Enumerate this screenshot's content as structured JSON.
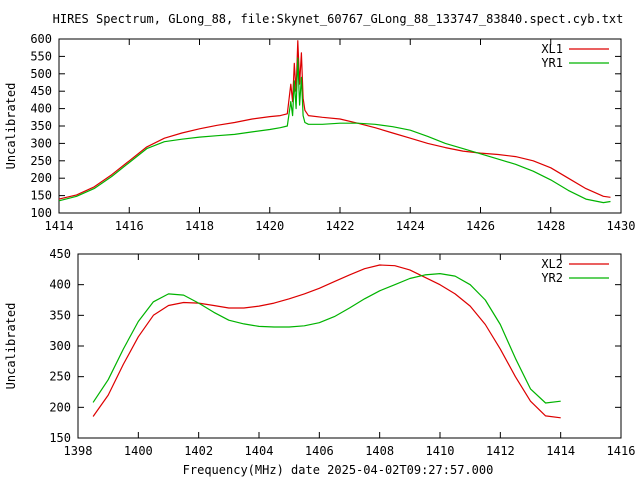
{
  "title": "HIRES Spectrum, GLong_88, file:Skynet_60767_GLong_88_133747_83840.spect.cyb.txt",
  "colors": {
    "red": "#dd0000",
    "green": "#00b300",
    "axis": "#000000"
  },
  "chart_data": [
    {
      "type": "line",
      "ylabel": "Uncalibrated",
      "xlabel": "",
      "xlim": [
        1414,
        1430
      ],
      "ylim": [
        100,
        600
      ],
      "xticks": [
        1414,
        1416,
        1418,
        1420,
        1422,
        1424,
        1426,
        1428,
        1430
      ],
      "yticks": [
        100,
        150,
        200,
        250,
        300,
        350,
        400,
        450,
        500,
        550,
        600
      ],
      "legend_position": "top-right",
      "series": [
        {
          "name": "XL1",
          "color": "#dd0000",
          "points": [
            [
              1414.0,
              140
            ],
            [
              1414.5,
              152
            ],
            [
              1415.0,
              175
            ],
            [
              1415.5,
              210
            ],
            [
              1416.0,
              250
            ],
            [
              1416.5,
              290
            ],
            [
              1417.0,
              315
            ],
            [
              1417.5,
              330
            ],
            [
              1418.0,
              342
            ],
            [
              1418.5,
              352
            ],
            [
              1419.0,
              360
            ],
            [
              1419.5,
              370
            ],
            [
              1420.0,
              377
            ],
            [
              1420.3,
              380
            ],
            [
              1420.5,
              385
            ],
            [
              1420.6,
              470
            ],
            [
              1420.65,
              420
            ],
            [
              1420.7,
              530
            ],
            [
              1420.75,
              450
            ],
            [
              1420.8,
              595
            ],
            [
              1420.85,
              470
            ],
            [
              1420.9,
              560
            ],
            [
              1420.95,
              430
            ],
            [
              1421.0,
              395
            ],
            [
              1421.1,
              380
            ],
            [
              1421.5,
              375
            ],
            [
              1422.0,
              370
            ],
            [
              1422.5,
              358
            ],
            [
              1423.0,
              345
            ],
            [
              1423.5,
              330
            ],
            [
              1424.0,
              315
            ],
            [
              1424.5,
              300
            ],
            [
              1425.0,
              288
            ],
            [
              1425.5,
              278
            ],
            [
              1426.0,
              272
            ],
            [
              1426.5,
              268
            ],
            [
              1427.0,
              262
            ],
            [
              1427.5,
              250
            ],
            [
              1428.0,
              230
            ],
            [
              1428.5,
              200
            ],
            [
              1429.0,
              170
            ],
            [
              1429.5,
              148
            ],
            [
              1429.7,
              145
            ]
          ]
        },
        {
          "name": "YR1",
          "color": "#00b300",
          "points": [
            [
              1414.0,
              135
            ],
            [
              1414.5,
              148
            ],
            [
              1415.0,
              170
            ],
            [
              1415.5,
              205
            ],
            [
              1416.0,
              245
            ],
            [
              1416.5,
              285
            ],
            [
              1417.0,
              305
            ],
            [
              1417.5,
              312
            ],
            [
              1418.0,
              318
            ],
            [
              1418.5,
              322
            ],
            [
              1419.0,
              326
            ],
            [
              1419.5,
              333
            ],
            [
              1420.0,
              340
            ],
            [
              1420.3,
              345
            ],
            [
              1420.5,
              350
            ],
            [
              1420.6,
              420
            ],
            [
              1420.65,
              380
            ],
            [
              1420.7,
              480
            ],
            [
              1420.75,
              400
            ],
            [
              1420.8,
              545
            ],
            [
              1420.85,
              410
            ],
            [
              1420.9,
              490
            ],
            [
              1420.95,
              380
            ],
            [
              1421.0,
              360
            ],
            [
              1421.1,
              355
            ],
            [
              1421.5,
              355
            ],
            [
              1422.0,
              358
            ],
            [
              1422.5,
              358
            ],
            [
              1423.0,
              355
            ],
            [
              1423.5,
              348
            ],
            [
              1424.0,
              338
            ],
            [
              1424.5,
              320
            ],
            [
              1425.0,
              300
            ],
            [
              1425.5,
              285
            ],
            [
              1426.0,
              270
            ],
            [
              1426.5,
              255
            ],
            [
              1427.0,
              240
            ],
            [
              1427.5,
              220
            ],
            [
              1428.0,
              195
            ],
            [
              1428.5,
              165
            ],
            [
              1429.0,
              140
            ],
            [
              1429.5,
              130
            ],
            [
              1429.7,
              133
            ]
          ]
        }
      ]
    },
    {
      "type": "line",
      "ylabel": "Uncalibrated",
      "xlabel": "Frequency(MHz) date 2025-04-02T09:27:57.000",
      "xlim": [
        1398,
        1416
      ],
      "ylim": [
        150,
        450
      ],
      "xticks": [
        1398,
        1400,
        1402,
        1404,
        1406,
        1408,
        1410,
        1412,
        1414,
        1416
      ],
      "yticks": [
        150,
        200,
        250,
        300,
        350,
        400,
        450
      ],
      "legend_position": "top-right",
      "series": [
        {
          "name": "XL2",
          "color": "#dd0000",
          "points": [
            [
              1398.5,
              185
            ],
            [
              1399.0,
              220
            ],
            [
              1399.5,
              270
            ],
            [
              1400.0,
              315
            ],
            [
              1400.5,
              350
            ],
            [
              1401.0,
              366
            ],
            [
              1401.5,
              371
            ],
            [
              1402.0,
              370
            ],
            [
              1402.5,
              366
            ],
            [
              1403.0,
              362
            ],
            [
              1403.5,
              362
            ],
            [
              1404.0,
              365
            ],
            [
              1404.5,
              370
            ],
            [
              1405.0,
              377
            ],
            [
              1405.5,
              385
            ],
            [
              1406.0,
              394
            ],
            [
              1406.5,
              405
            ],
            [
              1407.0,
              416
            ],
            [
              1407.5,
              426
            ],
            [
              1408.0,
              432
            ],
            [
              1408.5,
              431
            ],
            [
              1409.0,
              424
            ],
            [
              1409.5,
              412
            ],
            [
              1410.0,
              400
            ],
            [
              1410.5,
              385
            ],
            [
              1411.0,
              365
            ],
            [
              1411.5,
              335
            ],
            [
              1412.0,
              295
            ],
            [
              1412.5,
              250
            ],
            [
              1413.0,
              210
            ],
            [
              1413.5,
              186
            ],
            [
              1414.0,
              183
            ]
          ]
        },
        {
          "name": "YR2",
          "color": "#00b300",
          "points": [
            [
              1398.5,
              208
            ],
            [
              1399.0,
              245
            ],
            [
              1399.5,
              295
            ],
            [
              1400.0,
              340
            ],
            [
              1400.5,
              372
            ],
            [
              1401.0,
              385
            ],
            [
              1401.5,
              383
            ],
            [
              1402.0,
              370
            ],
            [
              1402.5,
              355
            ],
            [
              1403.0,
              342
            ],
            [
              1403.5,
              336
            ],
            [
              1404.0,
              332
            ],
            [
              1404.5,
              331
            ],
            [
              1405.0,
              331
            ],
            [
              1405.5,
              333
            ],
            [
              1406.0,
              338
            ],
            [
              1406.5,
              348
            ],
            [
              1407.0,
              362
            ],
            [
              1407.5,
              377
            ],
            [
              1408.0,
              390
            ],
            [
              1408.5,
              400
            ],
            [
              1409.0,
              410
            ],
            [
              1409.5,
              416
            ],
            [
              1410.0,
              418
            ],
            [
              1410.5,
              414
            ],
            [
              1411.0,
              400
            ],
            [
              1411.5,
              375
            ],
            [
              1412.0,
              335
            ],
            [
              1412.5,
              280
            ],
            [
              1413.0,
              230
            ],
            [
              1413.5,
              207
            ],
            [
              1414.0,
              210
            ]
          ]
        }
      ]
    }
  ]
}
